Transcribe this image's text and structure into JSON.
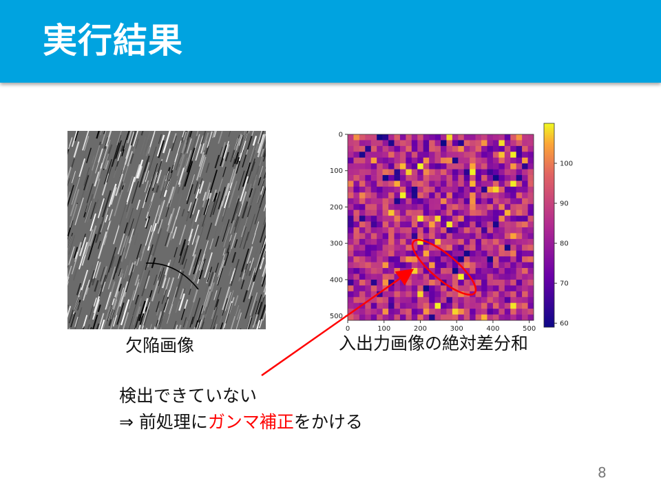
{
  "slide": {
    "title": "実行結果",
    "page_number": "8"
  },
  "left_figure": {
    "caption": "欠陥画像"
  },
  "right_figure": {
    "caption": "入出力画像の絶対差分和",
    "x_ticks": [
      "0",
      "100",
      "200",
      "300",
      "400",
      "500"
    ],
    "y_ticks": [
      "0",
      "100",
      "200",
      "300",
      "400",
      "500"
    ],
    "colorbar_ticks": [
      "100",
      "90",
      "80",
      "70",
      "60"
    ]
  },
  "chart_data": {
    "type": "heatmap",
    "xlim": [
      0,
      512
    ],
    "ylim": [
      512,
      0
    ],
    "grid_size": [
      32,
      32
    ],
    "value_range": [
      59,
      110
    ],
    "colormap": "plasma",
    "highlight_ellipse_center": [
      265,
      390
    ],
    "highlight_color": "#ff0000"
  },
  "note": {
    "line1": "検出できていない",
    "line2_prefix": "⇒ 前処理に",
    "line2_highlight": "ガンマ補正",
    "line2_suffix": "をかける"
  },
  "colors": {
    "header": "#00a3e0",
    "highlight": "#ff0000"
  }
}
